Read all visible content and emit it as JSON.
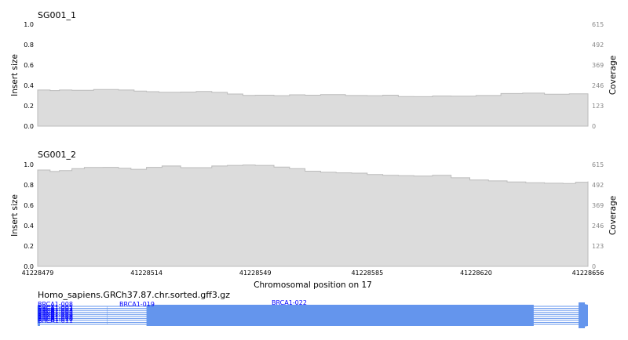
{
  "chart_data": {
    "type": "area",
    "xlabel": "Chromosomal position on 17",
    "x_ticks": [
      "41228479",
      "41228514",
      "41228549",
      "41228585",
      "41228620",
      "41228656"
    ],
    "xlim": [
      41228479,
      41228656
    ],
    "panels": [
      {
        "title": "SG001_1",
        "ylabel_left": "Insert size",
        "ylabel_right": "Coverage",
        "left_ticks": [
          "0.0",
          "0.2",
          "0.4",
          "0.6",
          "0.8",
          "1.0"
        ],
        "right_ticks": [
          "0",
          "123",
          "246",
          "369",
          "492",
          "615"
        ],
        "ylim": [
          0,
          615
        ],
        "fill_color": "#dcdcdc",
        "line_color": "#bbbbbb",
        "x": [
          41228479,
          41228483,
          41228486,
          41228490,
          41228497,
          41228505,
          41228510,
          41228514,
          41228518,
          41228525,
          41228530,
          41228535,
          41228540,
          41228545,
          41228549,
          41228555,
          41228560,
          41228565,
          41228570,
          41228578,
          41228585,
          41228590,
          41228595,
          41228600,
          41228606,
          41228612,
          41228620,
          41228628,
          41228635,
          41228642,
          41228650,
          41228656
        ],
        "y": [
          218,
          215,
          218,
          216,
          221,
          218,
          212,
          208,
          205,
          206,
          209,
          204,
          194,
          186,
          187,
          184,
          189,
          187,
          190,
          185,
          184,
          187,
          179,
          178,
          182,
          181,
          185,
          197,
          199,
          193,
          195,
          186
        ]
      },
      {
        "title": "SG001_2",
        "ylabel_left": "Insert size",
        "ylabel_right": "Coverage",
        "left_ticks": [
          "0.0",
          "0.2",
          "0.4",
          "0.6",
          "0.8",
          "1.0"
        ],
        "right_ticks": [
          "0",
          "123",
          "246",
          "369",
          "492",
          "615"
        ],
        "ylim": [
          0,
          615
        ],
        "fill_color": "#dcdcdc",
        "line_color": "#bbbbbb",
        "x": [
          41228479,
          41228483,
          41228486,
          41228490,
          41228494,
          41228500,
          41228505,
          41228509,
          41228514,
          41228519,
          41228525,
          41228530,
          41228535,
          41228540,
          41228545,
          41228549,
          41228555,
          41228560,
          41228565,
          41228570,
          41228575,
          41228580,
          41228585,
          41228590,
          41228595,
          41228600,
          41228606,
          41228612,
          41228618,
          41228624,
          41228630,
          41228636,
          41228642,
          41228648,
          41228652,
          41228656
        ],
        "y": [
          582,
          573,
          578,
          590,
          597,
          598,
          593,
          586,
          598,
          606,
          596,
          596,
          606,
          610,
          612,
          610,
          600,
          590,
          575,
          568,
          565,
          563,
          555,
          550,
          548,
          545,
          550,
          535,
          522,
          516,
          510,
          505,
          502,
          500,
          508,
          513
        ]
      }
    ],
    "track": {
      "title": "Homo_sapiens.GRCh37.87.chr.sorted.gff3.gz",
      "color": "#6495ed",
      "label_color": "#0000ff",
      "labels": [
        "BRCA1-008",
        "BRCA1-019",
        "BRCA1-022",
        "BRCA1-001",
        "BRCA1-002",
        "BRCA1-003",
        "BRCA1-004",
        "BRCA1-005",
        "BRCA1-006",
        "BRCA1-007",
        "BRCA1-009",
        "BRCA1-010",
        "BRCA1-011"
      ],
      "exons": [
        {
          "start": 41228479,
          "end": 41228514
        },
        {
          "start": 41228514,
          "end": 41228634
        },
        {
          "start": 41228634,
          "end": 41228655
        }
      ]
    }
  }
}
